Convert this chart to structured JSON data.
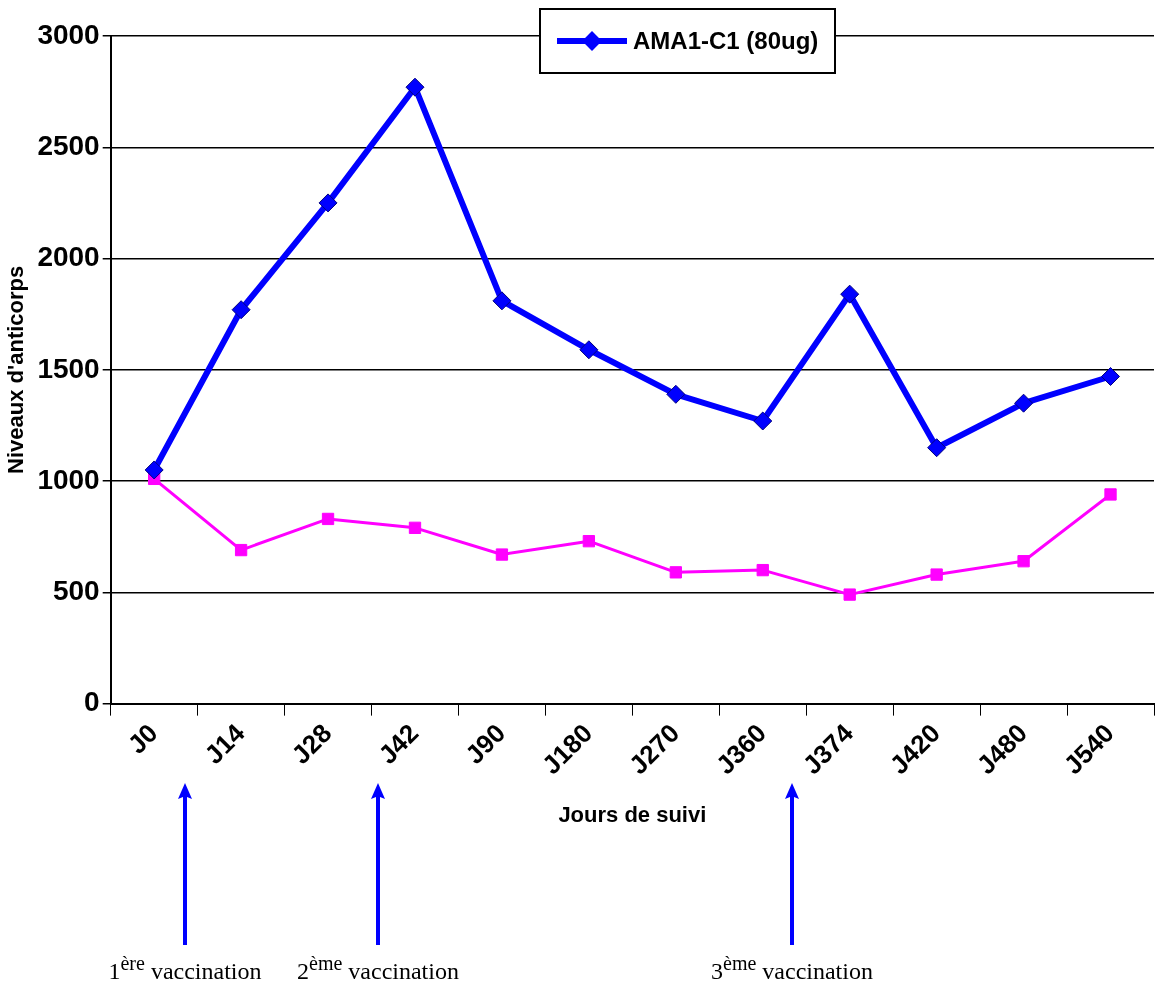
{
  "chart_data": {
    "type": "line",
    "xlabel": "Jours de suivi",
    "ylabel": "Niveaux d'anticorps",
    "categories": [
      "J0",
      "J14",
      "J28",
      "J42",
      "J90",
      "J180",
      "J270",
      "J360",
      "J374",
      "J420",
      "J480",
      "J540"
    ],
    "series": [
      {
        "name": "AMA1-C1 (80ug)",
        "color": "#0000ff",
        "marker": "diamond",
        "values": [
          1050,
          1770,
          2250,
          2770,
          1810,
          1590,
          1390,
          1270,
          1840,
          1150,
          1350,
          1470
        ]
      },
      {
        "color": "#ff00ff",
        "marker": "square",
        "values": [
          1010,
          690,
          830,
          790,
          670,
          730,
          590,
          600,
          490,
          580,
          640,
          940
        ]
      }
    ],
    "ylim": [
      0,
      3000
    ],
    "yticks": [
      0,
      500,
      1000,
      1500,
      2000,
      2500,
      3000
    ],
    "grid": "y",
    "legend": "top right",
    "annotations": [
      "1$^{ère}$ vaccination",
      "2$^{ème}$ vaccination",
      "3$^{ème}$ vaccination"
    ]
  }
}
